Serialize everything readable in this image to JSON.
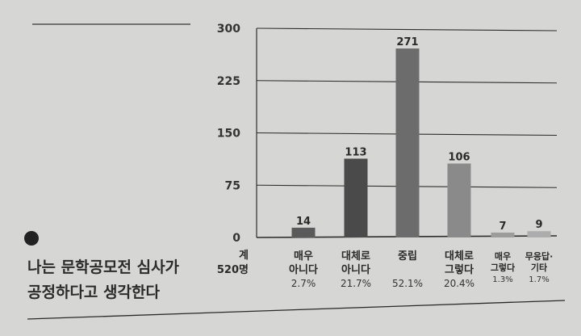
{
  "chart_data": {
    "type": "bar",
    "title": "나는 문학공모전 심사가 공정하다고 생각한다",
    "title_lines": [
      "나는 문학공모전 심사가",
      "공정하다고 생각한다"
    ],
    "total_label": "계",
    "total_value": "520명",
    "categories": [
      [
        "매우",
        "아니다"
      ],
      [
        "대체로",
        "아니다"
      ],
      [
        "중립"
      ],
      [
        "대체로",
        "그렇다"
      ],
      [
        "매우",
        "그렇다"
      ],
      [
        "무응답·",
        "기타"
      ]
    ],
    "values": [
      14,
      113,
      271,
      106,
      7,
      9
    ],
    "percent_labels": [
      "2.7%",
      "21.7%",
      "52.1%",
      "20.4%",
      "1.3%",
      "1.7%"
    ],
    "yticks": [
      "300",
      "225",
      "150",
      "75",
      "0"
    ],
    "ylim": [
      0,
      300
    ],
    "grid": true,
    "bar_colors": [
      "#5a5a5a",
      "#4a4a4a",
      "#6c6c6c",
      "#8a8a8a",
      "#9c9c9c",
      "#adadad"
    ]
  }
}
